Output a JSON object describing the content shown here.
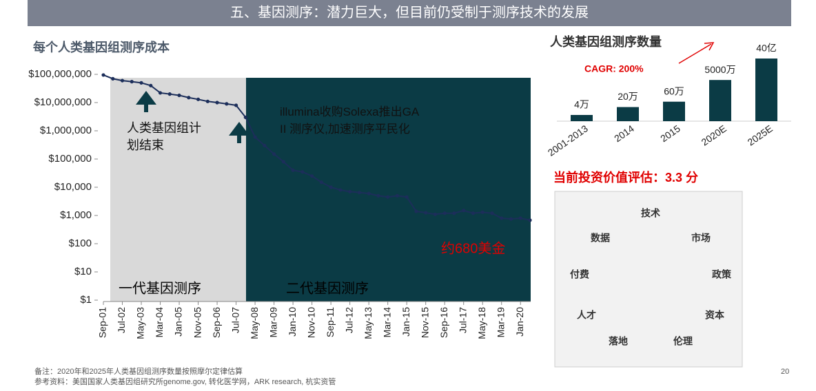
{
  "header": {
    "title": "五、基因测序：潜力巨大，但目前仍受制于测序技术的发展"
  },
  "chart_data": [
    {
      "type": "line",
      "title": "每个人类基因组测序成本",
      "categories": [
        "Sep-01",
        null,
        "Jul-02",
        null,
        "May-03",
        null,
        "Mar-04",
        null,
        "Jan-05",
        null,
        "Nov-05",
        null,
        "Sep-06",
        null,
        "Jul-07",
        null,
        "May-08",
        null,
        "Mar-09",
        null,
        "Jan-10",
        null,
        "Nov-10",
        null,
        "Sep-11",
        null,
        "Jul-12",
        null,
        "May-13",
        null,
        "Mar-14",
        null,
        "Jan-15",
        null,
        "Nov-15",
        null,
        "Sep-16",
        null,
        "Jul-17",
        null,
        "May-18",
        null,
        "Mar-19",
        null,
        "Jan-20",
        null
      ],
      "values": [
        95000000,
        70000000,
        60000000,
        55000000,
        50000000,
        40000000,
        22000000,
        20000000,
        18000000,
        15000000,
        13000000,
        11000000,
        10000000,
        9000000,
        8000000,
        3000000,
        600000,
        300000,
        150000,
        80000,
        40000,
        35000,
        25000,
        15000,
        10000,
        8000,
        7000,
        6500,
        6000,
        5000,
        4500,
        5000,
        4500,
        1400,
        1250,
        1100,
        1200,
        1200,
        1500,
        1200,
        1300,
        1200,
        800,
        750,
        800,
        680
      ],
      "color": "#1c2e5a",
      "log_scale": true,
      "ylim": [
        1,
        100000000
      ],
      "yticks": [
        {
          "value": 1,
          "label": "$1"
        },
        {
          "value": 10,
          "label": "$10"
        },
        {
          "value": 100,
          "label": "$100"
        },
        {
          "value": 1000,
          "label": "$1,000"
        },
        {
          "value": 10000,
          "label": "$10,000"
        },
        {
          "value": 100000,
          "label": "$100,000"
        },
        {
          "value": 1000000,
          "label": "$1,000,000"
        },
        {
          "value": 10000000,
          "label": "$10,000,000"
        },
        {
          "value": 100000000,
          "label": "$100,000,000"
        }
      ],
      "annotations": {
        "hgp": "人类基因组计划结束",
        "illumina": "illumina收购Solexa推出GA II 测序仪,加速测序平民化",
        "latest": "约680美金",
        "gen1": "一代基因测序",
        "gen2": "二代基因测序"
      }
    },
    {
      "type": "bar",
      "title": "人类基因组测序数量",
      "categories": [
        "2001-2013",
        "2014",
        "2015",
        "2020E",
        "2025E"
      ],
      "values": [
        40000,
        200000,
        600000,
        50000000,
        4000000000
      ],
      "value_labels": [
        "4万",
        "20万",
        "60万",
        "5000万",
        "40亿"
      ],
      "color": "#0b3b45",
      "log_scale": true,
      "annotation": "CAGR: 200%"
    }
  ],
  "assessment": {
    "title": "当前投资价值评估：3.3 分",
    "labels": [
      "技术",
      "数据",
      "市场",
      "付费",
      "政策",
      "人才",
      "资本",
      "落地",
      "伦理"
    ]
  },
  "footer": {
    "notes": [
      "备注：2020年和2025年人类基因组测序数量按照摩尔定律估算",
      "参考资料：美国国家人类基因组研究所genome.gov, 转化医学网，ARK research, 杭实资管"
    ],
    "page": 20
  }
}
